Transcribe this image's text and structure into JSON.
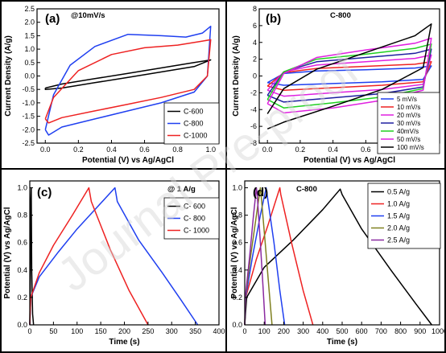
{
  "watermark": "Journal Pre-proof",
  "colors": {
    "black": "#000000",
    "blue": "#1f3ff0",
    "red": "#ee2222",
    "magenta": "#e020e0",
    "green": "#20d020",
    "cyan": "#1fb0c8",
    "navy": "#1f1fa0",
    "orange": "#e08a18",
    "olive": "#7f8020",
    "purple": "#8a2aa0",
    "dark_green": "#2a8a2a"
  },
  "chart_data": [
    {
      "id": "a",
      "panel_label": "(a)",
      "type": "line",
      "annotation": "@10mV/s",
      "xlabel": "Potential (V) vs Ag/AgCl",
      "ylabel": "Current Density (A/g)",
      "xlim": [
        -0.05,
        1.05
      ],
      "ylim": [
        -2.5,
        2.5
      ],
      "xticks": [
        0.0,
        0.2,
        0.4,
        0.6,
        0.8,
        1.0
      ],
      "xtick_labels": [
        "0.0",
        "0.2",
        "0.4",
        "0.6",
        "0.8",
        "1.0"
      ],
      "yticks": [
        -2.5,
        -2.0,
        -1.5,
        -1.0,
        -0.5,
        0.0,
        0.5,
        1.0,
        1.5,
        2.0,
        2.5
      ],
      "ytick_labels": [
        "-2.5",
        "-2.0",
        "-1.5",
        "-1.0",
        "-0.5",
        "0.0",
        "0.5",
        "1.0",
        "1.5",
        "2.0",
        "2.5"
      ],
      "legend_position": "lower-right",
      "series": [
        {
          "name": "C-600",
          "color": "black",
          "x": [
            0.0,
            0.1,
            0.3,
            0.5,
            0.7,
            0.9,
            1.0,
            0.9,
            0.7,
            0.5,
            0.3,
            0.1,
            0.0,
            0.0
          ],
          "y": [
            -0.45,
            -0.3,
            -0.1,
            0.1,
            0.3,
            0.5,
            0.6,
            0.35,
            0.15,
            -0.05,
            -0.25,
            -0.45,
            -0.5,
            -0.45
          ]
        },
        {
          "name": "C-800",
          "color": "blue",
          "x": [
            0.0,
            0.05,
            0.15,
            0.3,
            0.5,
            0.7,
            0.85,
            0.95,
            1.0,
            0.98,
            0.9,
            0.7,
            0.5,
            0.3,
            0.1,
            0.02,
            0.0
          ],
          "y": [
            -2.0,
            -0.7,
            0.4,
            1.1,
            1.55,
            1.5,
            1.45,
            1.6,
            1.85,
            0.0,
            -0.6,
            -1.0,
            -1.3,
            -1.6,
            -1.9,
            -2.2,
            -2.0
          ]
        },
        {
          "name": "C-1000",
          "color": "red",
          "x": [
            0.0,
            0.05,
            0.2,
            0.4,
            0.6,
            0.8,
            0.95,
            1.0,
            0.98,
            0.9,
            0.7,
            0.5,
            0.3,
            0.1,
            0.02,
            0.0
          ],
          "y": [
            -1.6,
            -0.8,
            0.2,
            0.8,
            1.05,
            1.15,
            1.3,
            1.35,
            0.0,
            -0.5,
            -0.8,
            -1.05,
            -1.3,
            -1.55,
            -1.75,
            -1.6
          ]
        }
      ]
    },
    {
      "id": "b",
      "panel_label": "(b)",
      "type": "line",
      "annotation": "C-800",
      "xlabel": "Potential (V) vs Ag/AgCl",
      "ylabel": "Current Density (A/g)",
      "xlim": [
        -0.05,
        1.05
      ],
      "ylim": [
        -8,
        8
      ],
      "xticks": [
        0.0,
        0.2,
        0.4,
        0.6,
        0.8,
        1.0
      ],
      "xtick_labels": [
        "0.0",
        "0.2",
        "0.4",
        "0.6",
        "0.8",
        "1.0"
      ],
      "yticks": [
        -8,
        -6,
        -4,
        -2,
        0,
        2,
        4,
        6,
        8
      ],
      "ytick_labels": [
        "-8",
        "-6",
        "-4",
        "-2",
        "0",
        "2",
        "4",
        "6",
        "8"
      ],
      "legend_position": "lower-right",
      "series": [
        {
          "name": "5 mV/s",
          "color": "blue",
          "x": [
            0.0,
            0.1,
            0.3,
            0.6,
            0.9,
            1.0,
            0.95,
            0.7,
            0.4,
            0.1,
            0.0
          ],
          "y": [
            -0.8,
            0.3,
            0.6,
            0.75,
            0.95,
            1.2,
            -0.4,
            -0.7,
            -0.9,
            -1.1,
            -0.8
          ]
        },
        {
          "name": "10 mV/s",
          "color": "red",
          "x": [
            0.0,
            0.1,
            0.3,
            0.6,
            0.9,
            1.0,
            0.95,
            0.7,
            0.4,
            0.1,
            0.0
          ],
          "y": [
            -1.2,
            0.4,
            0.9,
            1.15,
            1.4,
            1.7,
            -0.7,
            -1.1,
            -1.4,
            -1.7,
            -1.2
          ]
        },
        {
          "name": "20 mV/s",
          "color": "magenta",
          "x": [
            0.0,
            0.1,
            0.3,
            0.6,
            0.9,
            1.0,
            0.95,
            0.7,
            0.4,
            0.1,
            0.0
          ],
          "y": [
            -1.7,
            0.5,
            1.3,
            1.7,
            2.1,
            2.5,
            -1.0,
            -1.6,
            -2.0,
            -2.4,
            -1.7
          ]
        },
        {
          "name": "30 mV/s",
          "color": "navy",
          "x": [
            0.0,
            0.1,
            0.3,
            0.6,
            0.9,
            1.0,
            0.95,
            0.7,
            0.4,
            0.1,
            0.0
          ],
          "y": [
            -2.3,
            0.5,
            1.7,
            2.2,
            2.7,
            3.2,
            -1.3,
            -2.1,
            -2.6,
            -3.1,
            -2.3
          ]
        },
        {
          "name": "40mV/s",
          "color": "green",
          "x": [
            0.0,
            0.1,
            0.3,
            0.6,
            0.9,
            1.0,
            0.95,
            0.7,
            0.4,
            0.1,
            0.0
          ],
          "y": [
            -2.8,
            0.5,
            2.0,
            2.6,
            3.3,
            3.8,
            -1.5,
            -2.5,
            -3.2,
            -3.8,
            -2.8
          ]
        },
        {
          "name": "50 mV/s",
          "color": "magenta",
          "x": [
            0.0,
            0.1,
            0.3,
            0.6,
            0.9,
            1.0,
            0.95,
            0.7,
            0.4,
            0.1,
            0.0
          ],
          "y": [
            -3.3,
            0.3,
            2.2,
            3.1,
            3.9,
            4.5,
            -1.7,
            -2.9,
            -3.8,
            -4.4,
            -3.3
          ]
        },
        {
          "name": "100 mV/s",
          "color": "black",
          "x": [
            0.0,
            0.1,
            0.3,
            0.6,
            0.9,
            1.0,
            0.95,
            0.7,
            0.4,
            0.1,
            0.0
          ],
          "y": [
            -4.5,
            -1.5,
            0.8,
            2.8,
            4.8,
            6.2,
            1.0,
            -1.6,
            -3.6,
            -5.5,
            -6.3
          ]
        }
      ]
    },
    {
      "id": "c",
      "panel_label": "(c)",
      "type": "line",
      "annotation": "@ 1 A/g",
      "xlabel": "Time (s)",
      "ylabel": "Potential (V) vs Ag/AgCl",
      "xlim": [
        0,
        400
      ],
      "ylim": [
        0.0,
        1.05
      ],
      "xticks": [
        0,
        50,
        100,
        150,
        200,
        250,
        300,
        350,
        400
      ],
      "xtick_labels": [
        "0",
        "50",
        "100",
        "150",
        "200",
        "250",
        "300",
        "350",
        "400"
      ],
      "yticks": [
        0.0,
        0.2,
        0.4,
        0.6,
        0.8,
        1.0
      ],
      "ytick_labels": [
        "0.0",
        "0.2",
        "0.4",
        "0.6",
        "0.8",
        "1.0"
      ],
      "legend_position": "top-right",
      "series": [
        {
          "name": "C- 600",
          "color": "black",
          "x": [
            0,
            1,
            2,
            3,
            4,
            6,
            8
          ],
          "y": [
            0.0,
            0.25,
            0.9,
            1.0,
            0.4,
            0.08,
            0.0
          ]
        },
        {
          "name": "C- 800",
          "color": "blue",
          "x": [
            0,
            2,
            20,
            60,
            100,
            140,
            180,
            185,
            230,
            280,
            320,
            355
          ],
          "y": [
            0.0,
            0.2,
            0.35,
            0.53,
            0.7,
            0.85,
            1.0,
            0.9,
            0.62,
            0.38,
            0.18,
            0.0
          ]
        },
        {
          "name": "C- 1000",
          "color": "red",
          "x": [
            0,
            2,
            20,
            50,
            90,
            125,
            130,
            170,
            210,
            250
          ],
          "y": [
            0.0,
            0.2,
            0.38,
            0.58,
            0.8,
            1.0,
            0.9,
            0.55,
            0.25,
            0.0
          ]
        }
      ]
    },
    {
      "id": "d",
      "panel_label": "(d)",
      "type": "line",
      "annotation": "C-800",
      "xlabel": "Time (s)",
      "ylabel": "Potential (V) vs Ag/AgCl",
      "xlim": [
        0,
        1000
      ],
      "ylim": [
        0.0,
        1.05
      ],
      "xticks": [
        0,
        100,
        200,
        300,
        400,
        500,
        600,
        700,
        800,
        900,
        1000
      ],
      "xtick_labels": [
        "0",
        "100",
        "200",
        "300",
        "400",
        "500",
        "600",
        "700",
        "800",
        "900",
        "1000"
      ],
      "yticks": [
        0.0,
        0.2,
        0.4,
        0.6,
        0.8,
        1.0
      ],
      "ytick_labels": [
        "0.0",
        "0.2",
        "0.4",
        "0.6",
        "0.8",
        "1.0"
      ],
      "legend_position": "top-right",
      "series": [
        {
          "name": "0.5 A/g",
          "color": "black",
          "x": [
            0,
            10,
            100,
            250,
            400,
            490,
            500,
            600,
            750,
            880,
            960
          ],
          "y": [
            0.0,
            0.2,
            0.42,
            0.62,
            0.84,
            0.99,
            0.95,
            0.7,
            0.4,
            0.15,
            0.0
          ]
        },
        {
          "name": "1.0 A/g",
          "color": "red",
          "x": [
            0,
            5,
            60,
            120,
            180,
            185,
            240,
            300,
            350
          ],
          "y": [
            0.0,
            0.2,
            0.48,
            0.73,
            1.0,
            0.95,
            0.6,
            0.25,
            0.0
          ]
        },
        {
          "name": "1.5 A/g",
          "color": "blue",
          "x": [
            0,
            5,
            40,
            80,
            110,
            115,
            150,
            180,
            205
          ],
          "y": [
            0.0,
            0.2,
            0.5,
            0.8,
            1.0,
            0.95,
            0.6,
            0.25,
            0.0
          ]
        },
        {
          "name": "2.0 A/g",
          "color": "olive",
          "x": [
            0,
            4,
            30,
            60,
            80,
            84,
            105,
            125,
            140
          ],
          "y": [
            0.0,
            0.2,
            0.5,
            0.8,
            1.0,
            0.95,
            0.6,
            0.25,
            0.0
          ]
        },
        {
          "name": "2.5 A/g",
          "color": "purple",
          "x": [
            0,
            3,
            25,
            45,
            60,
            64,
            80,
            95,
            105
          ],
          "y": [
            0.0,
            0.2,
            0.5,
            0.8,
            1.0,
            0.95,
            0.6,
            0.25,
            0.0
          ]
        }
      ]
    }
  ]
}
